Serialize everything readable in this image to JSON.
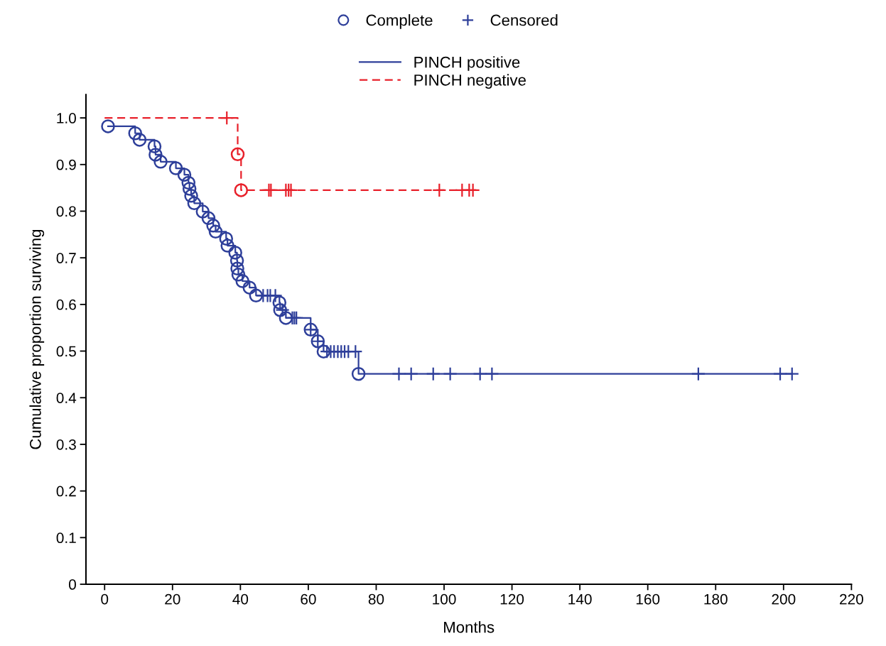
{
  "chart_data": {
    "type": "step",
    "xlabel": "Months",
    "ylabel": "Cumulative proportion surviving",
    "xlim": [
      -5.5,
      220
    ],
    "xticks": [
      0,
      20,
      40,
      60,
      80,
      100,
      120,
      140,
      160,
      180,
      200,
      220
    ],
    "ylim": [
      0,
      1.05
    ],
    "yticks": [
      0,
      0.1,
      0.2,
      0.3,
      0.4,
      0.5,
      0.6,
      0.7,
      0.8,
      0.9,
      {
        "value": 1,
        "label": "1.0"
      }
    ],
    "grid": false,
    "legend": "top",
    "series": [
      {
        "name": "PINCH positive",
        "color": "#2e3f9a",
        "line_style": "solid",
        "x": [
          1,
          9,
          10.3,
          14.7,
          15,
          16.5,
          21,
          23.5,
          24.7,
          25,
          25.5,
          26.4,
          28.9,
          30.6,
          32,
          32.7,
          35.8,
          36.2,
          38.5,
          39,
          39.1,
          39.4,
          40.6,
          42.7,
          44.6,
          51.5,
          51.7,
          53.4,
          60.7,
          62.8,
          64.5,
          74.8,
          202.5
        ],
        "values": [
          0.982,
          0.967,
          0.953,
          0.939,
          0.921,
          0.906,
          0.892,
          0.878,
          0.861,
          0.848,
          0.833,
          0.817,
          0.799,
          0.785,
          0.769,
          0.756,
          0.741,
          0.726,
          0.711,
          0.694,
          0.677,
          0.664,
          0.65,
          0.636,
          0.619,
          0.604,
          0.588,
          0.571,
          0.546,
          0.521,
          0.499,
          0.451,
          0.451
        ]
      },
      {
        "name": "PINCH negative",
        "color": "#e8202a",
        "line_style": "dashed",
        "x": [
          0,
          39.2,
          40.2,
          109.5
        ],
        "values": [
          1.0,
          0.922,
          0.845,
          0.845
        ]
      },
      {
        "name": "Complete",
        "type": "scatter",
        "marker": "circle",
        "color": "#2e3f9a",
        "x": [
          1,
          9,
          10.3,
          14.7,
          15,
          16.5,
          21,
          23.5,
          24.7,
          25,
          25.5,
          26.4,
          28.9,
          30.6,
          32,
          32.7,
          35.8,
          36.2,
          38.5,
          39,
          39.1,
          39.4,
          40.6,
          42.7,
          44.6,
          51.5,
          51.7,
          53.4,
          60.7,
          62.8,
          64.5,
          74.8
        ],
        "values": [
          0.982,
          0.967,
          0.953,
          0.939,
          0.921,
          0.906,
          0.892,
          0.878,
          0.861,
          0.848,
          0.833,
          0.817,
          0.799,
          0.785,
          0.769,
          0.756,
          0.741,
          0.726,
          0.711,
          0.694,
          0.677,
          0.664,
          0.65,
          0.636,
          0.619,
          0.604,
          0.588,
          0.571,
          0.546,
          0.521,
          0.499,
          0.451
        ]
      },
      {
        "type": "scatter",
        "marker": "circle",
        "color": "#e8202a",
        "x": [
          39.2,
          40.2
        ],
        "values": [
          0.922,
          0.845
        ]
      },
      {
        "name": "Censored",
        "type": "scatter",
        "marker": "cross",
        "color": "#2e3f9a",
        "x": [
          46.7,
          48,
          48.8,
          50.3,
          52.4,
          55.3,
          55.9,
          56.5,
          60.7,
          62.8,
          65.5,
          66.6,
          67.6,
          68.7,
          69.7,
          70.7,
          71.8,
          73.9,
          86.7,
          90.3,
          96.8,
          101.8,
          110.6,
          114.1,
          174.9,
          199,
          202.5
        ],
        "values": [
          0.619,
          0.619,
          0.619,
          0.619,
          0.588,
          0.571,
          0.571,
          0.571,
          0.546,
          0.521,
          0.499,
          0.499,
          0.499,
          0.499,
          0.499,
          0.499,
          0.499,
          0.499,
          0.451,
          0.451,
          0.451,
          0.451,
          0.451,
          0.451,
          0.451,
          0.451,
          0.451
        ]
      },
      {
        "type": "scatter",
        "marker": "cross",
        "color": "#e8202a",
        "x": [
          36,
          48.4,
          49,
          53.4,
          54.2,
          54.9,
          98.6,
          105.3,
          107.4,
          108.5
        ],
        "values": [
          1.0,
          0.845,
          0.845,
          0.845,
          0.845,
          0.845,
          0.845,
          0.845,
          0.845,
          0.845
        ]
      }
    ]
  }
}
